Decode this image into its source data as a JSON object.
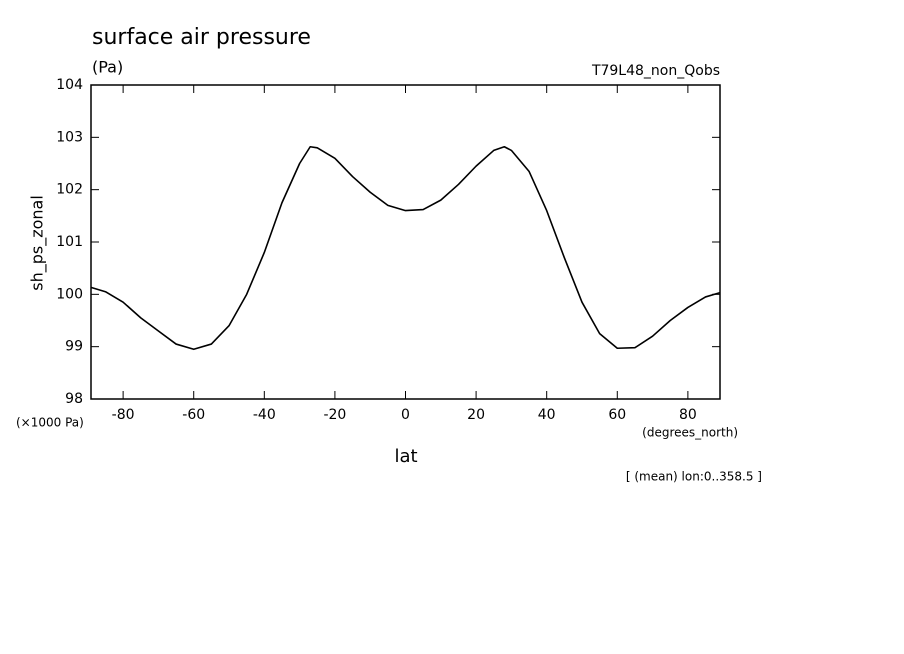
{
  "chart_data": {
    "type": "line",
    "title": "surface air pressure",
    "units": "(Pa)",
    "run_label": "T79L48_non_Qobs",
    "y_label": "sh_ps_zonal",
    "y_scale_label": "(×1000 Pa)",
    "x_label": "lat",
    "x_units": "(degrees_north)",
    "footnote": "[ (mean) lon:0..358.5 ]",
    "color": "#000000",
    "x": [
      -89,
      -85,
      -80,
      -75,
      -70,
      -65,
      -60,
      -55,
      -50,
      -45,
      -40,
      -35,
      -30,
      -27,
      -25,
      -20,
      -15,
      -10,
      -5,
      0,
      5,
      10,
      15,
      20,
      25,
      28,
      30,
      35,
      40,
      45,
      50,
      55,
      60,
      65,
      70,
      75,
      80,
      85,
      89
    ],
    "values": [
      100.13,
      100.05,
      99.85,
      99.55,
      99.3,
      99.05,
      98.95,
      99.05,
      99.4,
      100.0,
      100.8,
      101.75,
      102.5,
      102.82,
      102.8,
      102.6,
      102.25,
      101.95,
      101.7,
      101.6,
      101.62,
      101.8,
      102.1,
      102.45,
      102.75,
      102.82,
      102.75,
      102.35,
      101.6,
      100.7,
      99.85,
      99.25,
      98.97,
      98.98,
      99.2,
      99.5,
      99.75,
      99.95,
      100.03
    ],
    "xlim": [
      -89.1,
      89.1
    ],
    "xticks": [
      -80,
      -60,
      -40,
      -20,
      0,
      20,
      40,
      60,
      80
    ],
    "ylim": [
      98,
      104
    ],
    "yticks": [
      98,
      99,
      100,
      101,
      102,
      103,
      104
    ]
  }
}
